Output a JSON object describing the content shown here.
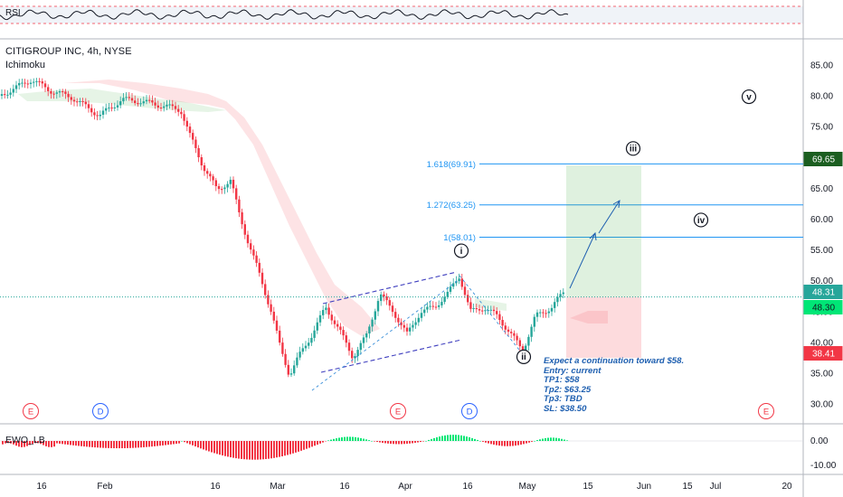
{
  "chart": {
    "symbol_title": "CITIGROUP INC, 4h, NYSE",
    "indicator_label": "Ichimoku",
    "rsi_label": "RSI",
    "ewo_label": "EWO_LB"
  },
  "price_axis": {
    "ticks": [
      "85.00",
      "80.00",
      "75.00",
      "70.00",
      "65.00",
      "60.00",
      "55.00",
      "50.00",
      "45.00",
      "40.00",
      "35.00",
      "30.00"
    ],
    "badges": [
      {
        "text": "69.65",
        "color": "#ffffff",
        "bg": "#1b5e20",
        "border": "#1b5e20"
      },
      {
        "text": "48.31",
        "color": "#ffffff",
        "bg": "#26a69a",
        "border": "#26a69a"
      },
      {
        "text": "48.30",
        "color": "#131722",
        "bg": "#00e676",
        "border": "#00e676"
      },
      {
        "text": "38.41",
        "color": "#ffffff",
        "bg": "#f23645",
        "border": "#f23645"
      }
    ]
  },
  "ewo_axis": {
    "ticks": [
      "0.00",
      "-10.00"
    ]
  },
  "time_axis": {
    "labels": [
      "16",
      "Feb",
      "16",
      "Mar",
      "16",
      "Apr",
      "16",
      "May",
      "15",
      "Jun",
      "15",
      "Jul",
      "20"
    ]
  },
  "fib_levels": [
    {
      "label": "1.618(69.91)",
      "price": 69.91
    },
    {
      "label": "1.272(63.25)",
      "price": 63.25
    },
    {
      "label": "1(58.01)",
      "price": 58.01
    }
  ],
  "waves": [
    {
      "label": "i",
      "price": 55.8
    },
    {
      "label": "ii",
      "price": 38.6
    },
    {
      "label": "iii",
      "price": 72.4
    },
    {
      "label": "iv",
      "price": 60.8
    },
    {
      "label": "v",
      "price": 80.8
    }
  ],
  "events": [
    {
      "label": "E",
      "kind": "earnings",
      "color": "#f23645"
    },
    {
      "label": "D",
      "kind": "dividend",
      "color": "#2962ff"
    },
    {
      "label": "E",
      "kind": "earnings",
      "color": "#f23645"
    },
    {
      "label": "D",
      "kind": "dividend",
      "color": "#2962ff"
    },
    {
      "label": "E",
      "kind": "earnings",
      "color": "#f23645"
    }
  ],
  "trade_note": {
    "line1": "Expect a continuation toward $58.",
    "line2": "Entry: current",
    "line3": "TP1: $58",
    "line4": "Tp2: $63.25",
    "line5": "Tp3: TBD",
    "line6": "SL: $38.50"
  },
  "position": {
    "entry": 48.31,
    "target": 69.65,
    "stop": 38.41
  },
  "current_price": 48.31,
  "colors": {
    "up": "#26a69a",
    "down": "#f23645",
    "fib": "#2196f3",
    "wave": "#131722",
    "channel": "#3f3fbf",
    "projection": "#1e5fb0"
  }
}
